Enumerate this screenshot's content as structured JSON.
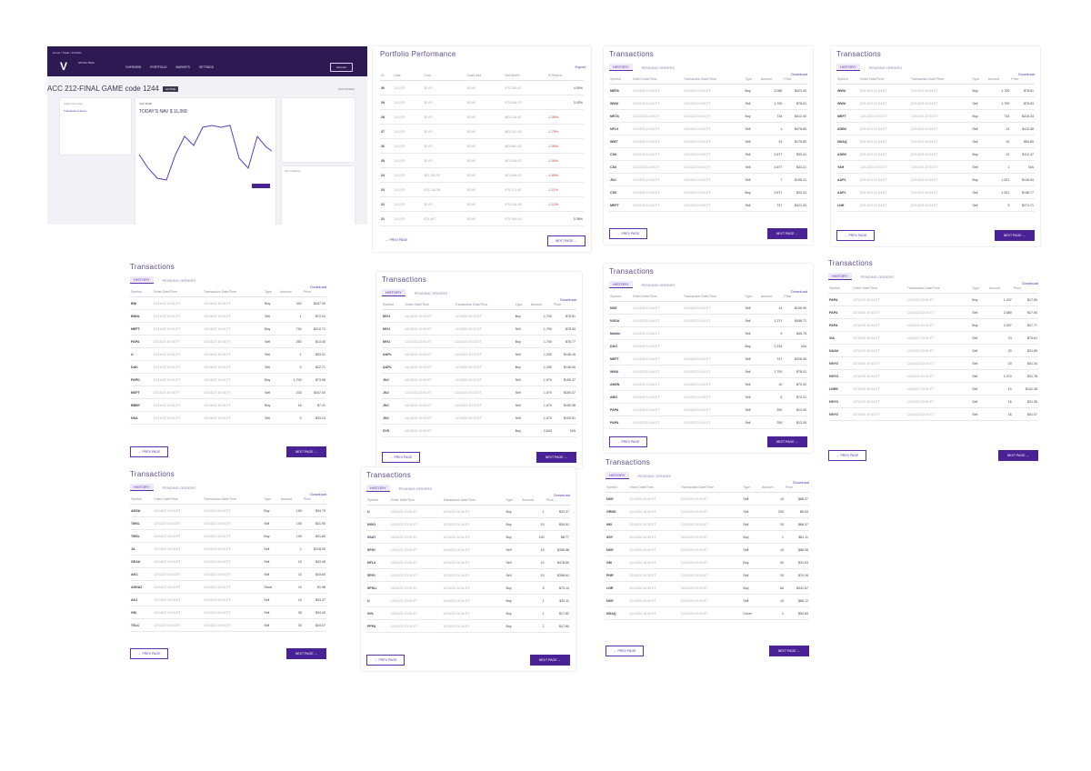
{
  "dashboard": {
    "breadcrumb": "Home / Trade / Portfolio",
    "logo_text": "STOCK TRAK",
    "nav": [
      "OVERVIEW",
      "PORTFOLIO",
      "MARKETS",
      "SETTINGS"
    ],
    "account_button": "Account",
    "game_title": "ACC 212-FINAL GAME code 1244",
    "badge": "ACTIVE",
    "right_link": "View Portfolio",
    "box1_title": "Class Overview",
    "box1_link": "Transaction History",
    "profit_title": "Your Profit",
    "profit_value": "TODAY'S NAV $ 11,068",
    "overview_title": "Top Holdings"
  },
  "performance": {
    "title": "Portfolio Performance",
    "link": "Export",
    "headers": [
      "ID",
      "Date",
      "Cost",
      "Cash Add",
      "Net Worth",
      "% Return"
    ],
    "rows": [
      [
        "30",
        "12/1/23",
        "$0.00",
        "$0.00",
        "$76,356.82",
        "4.05%"
      ],
      [
        "29",
        "12/1/23",
        "$0.00",
        "$0.00",
        "$75,538.70",
        "3.42%"
      ],
      [
        "28",
        "12/1/23",
        "$0.00",
        "$0.00",
        "$63,218.80",
        "-1.08%"
      ],
      [
        "27",
        "12/1/23",
        "$0.00",
        "$0.00",
        "$63,100.38",
        "-1.75%"
      ],
      [
        "26",
        "12/1/23",
        "$0.00",
        "$0.00",
        "$63,880.48",
        "-1.58%"
      ],
      [
        "25",
        "12/1/23",
        "$0.00",
        "$0.00",
        "$61,538.53",
        "-1.56%"
      ],
      [
        "24",
        "12/1/23",
        "$61,280.00",
        "$0.00",
        "$61,558.43",
        "-1.68%"
      ],
      [
        "23",
        "12/1/23",
        "$76,218.58",
        "$0.00",
        "$76,371.60",
        "-1.11%"
      ],
      [
        "22",
        "12/1/23",
        "$0.00",
        "$0.00",
        "$76,318.38",
        "-1.12%"
      ],
      [
        "21",
        "12/1/23",
        "$74,467",
        "$0.00",
        "$75,189.44",
        "0.38%"
      ]
    ],
    "prev": "← PREV PAGE",
    "next": "NEXT PAGE →"
  },
  "common": {
    "title": "Transactions",
    "tab_history": "HISTORY",
    "tab_pending": "PENDING ORDERS",
    "download": "Download",
    "prev": "← PREV PAGE",
    "next": "NEXT PAGE →",
    "headers": [
      "Symbol",
      "Order Date/Time",
      "Transaction Date/Time",
      "Type",
      "Amount",
      "Price"
    ]
  },
  "tx": [
    {
      "rows": [
        [
          "MEFA",
          "12/14/23 10:34 ET",
          "12/14/23 10:34 ET",
          "Buy",
          "3,066",
          "$423.40"
        ],
        [
          "WWU",
          "12/14/23 10:34 ET",
          "12/14/23 10:34 ET",
          "Sell",
          "1,700",
          "$78.01"
        ],
        [
          "META",
          "12/14/23 10:34 ET",
          "12/14/23 10:34 ET",
          "Buy",
          "734",
          "$312.40"
        ],
        [
          "NFLX",
          "12/14/23 10:34 ET",
          "12/14/23 10:34 ET",
          "Sell",
          "1",
          "$478.60"
        ],
        [
          "WMT",
          "12/14/23 10:34 ET",
          "12/14/23 10:34 ET",
          "Sell",
          "24",
          "$179.80"
        ],
        [
          "CSX",
          "12/14/23 10:34 ET",
          "12/14/23 10:34 ET",
          "Sell",
          "2,677",
          "$33.41"
        ],
        [
          "CSX",
          "12/14/23 10:34 ET",
          "12/14/23 10:34 ET",
          "Sell",
          "2,677",
          "$33.21"
        ],
        [
          "JNJ",
          "12/14/23 10:34 ET",
          "12/14/23 10:34 ET",
          "Sell",
          "7",
          "$156.21"
        ],
        [
          "CSX",
          "12/14/23 10:34 ET",
          "12/14/23 10:34 ET",
          "Buy",
          "2,677",
          "$33.34"
        ],
        [
          "MEFT",
          "12/14/23 10:34 ET",
          "12/14/23 10:34 ET",
          "Sell",
          "737",
          "$321.00"
        ]
      ]
    },
    {
      "rows": [
        [
          "WWU",
          "12/14/23 10:34 ET",
          "12/14/23 10:34 ET",
          "Buy",
          "1,700",
          "$78.61"
        ],
        [
          "WWU",
          "12/14/23 10:34 ET",
          "12/14/23 10:34 ET",
          "Sell",
          "1,700",
          "$78.53"
        ],
        [
          "MEFT",
          "12/14/23 10:34 ET",
          "12/14/23 10:34 ET",
          "Buy",
          "734",
          "$316.34"
        ],
        [
          "ADBV",
          "12/14/23 10:34 ET",
          "12/14/23 10:34 ET",
          "Sell",
          "13",
          "$112.48"
        ],
        [
          "NDAQ",
          "12/14/23 10:34 ET",
          "12/14/23 10:34 ET",
          "Sell",
          "10",
          "$54.89"
        ],
        [
          "ADBV",
          "12/14/23 10:34 ET",
          "12/14/23 10:34 ET",
          "Buy",
          "13",
          "$112.47"
        ],
        [
          "YAH",
          "12/14/23 10:34 ET",
          "12/14/23 10:34 ET",
          "Sell",
          "1",
          "N/A"
        ],
        [
          "AAPL",
          "12/14/23 10:34 ET",
          "12/14/23 10:34 ET",
          "Buy",
          "1,321",
          "$146.54"
        ],
        [
          "AAPL",
          "12/14/23 10:34 ET",
          "12/14/23 10:34 ET",
          "Sell",
          "1,321",
          "$146.77"
        ],
        [
          "LNH",
          "12/14/23 10:34 ET",
          "12/14/23 10:34 ET",
          "Sell",
          "5",
          "$274.71"
        ]
      ]
    },
    {
      "rows": [
        [
          "BNI",
          "12/14/23 10:34 ET",
          "12/14/23 10:34 ET",
          "Buy",
          "343",
          "$347.30"
        ],
        [
          "BNNL",
          "12/14/23 10:34 ET",
          "12/14/23 10:34 ET",
          "Sell",
          "1",
          "$72.01"
        ],
        [
          "MEFT",
          "12/14/23 10:34 ET",
          "12/14/23 10:34 ET",
          "Buy",
          "734",
          "$310.71"
        ],
        [
          "PAPA",
          "12/14/23 10:34 ET",
          "12/14/23 10:34 ET",
          "Sell",
          "250",
          "$13.40"
        ],
        [
          "U",
          "12/14/23 10:34 ET",
          "12/14/23 10:34 ET",
          "Sell",
          "1",
          "$33.31"
        ],
        [
          "DAK",
          "12/14/23 10:34 ET",
          "12/14/23 10:34 ET",
          "Sell",
          "5",
          "$22.71"
        ],
        [
          "PAPD",
          "12/14/23 10:34 ET",
          "12/14/23 10:34 ET",
          "Buy",
          "1,700",
          "$73.96"
        ],
        [
          "MSFT",
          "12/14/23 10:34 ET",
          "12/14/23 10:34 ET",
          "Sell",
          "234",
          "$347.04"
        ],
        [
          "BBBY",
          "12/14/23 10:34 ET",
          "12/14/23 10:34 ET",
          "Buy",
          "16",
          "$7.41"
        ],
        [
          "NSA",
          "12/14/23 10:34 ET",
          "12/14/23 10:34 ET",
          "Sell",
          "5",
          "$33.24"
        ]
      ]
    },
    {
      "rows": [
        [
          "MVU",
          "12/14/23 10:34 ET",
          "12/14/23 10:34 ET",
          "Buy",
          "1,700",
          "$78.51"
        ],
        [
          "MVU",
          "12/14/23 10:34 ET",
          "12/14/23 10:34 ET",
          "Sell",
          "1,700",
          "$78.50"
        ],
        [
          "MVU",
          "12/14/23 10:34 ET",
          "12/14/23 10:34 ET",
          "Buy",
          "1,700",
          "$78.77"
        ],
        [
          "AAPL",
          "12/14/23 10:34 ET",
          "12/14/23 10:34 ET",
          "Sell",
          "1,330",
          "$146.16"
        ],
        [
          "AAPL",
          "12/14/23 10:34 ET",
          "12/14/23 10:34 ET",
          "Buy",
          "1,330",
          "$146.50"
        ],
        [
          "JNJ",
          "12/14/23 10:34 ET",
          "12/14/23 10:34 ET",
          "Sell",
          "1,070",
          "$150.37"
        ],
        [
          "JNJ",
          "12/14/23 10:34 ET",
          "12/14/23 10:34 ET",
          "Sell",
          "1,070",
          "$150.37"
        ],
        [
          "JNJ",
          "12/14/23 10:34 ET",
          "12/14/23 10:34 ET",
          "Sell",
          "1,070",
          "$150.38"
        ],
        [
          "JNJ",
          "12/14/23 10:34 ET",
          "12/14/23 10:34 ET",
          "Sell",
          "1,070",
          "$150.51"
        ],
        [
          "SYK",
          "12/14/23 10:34 ET",
          "",
          "Buy",
          "2,643",
          "N/A"
        ]
      ]
    },
    {
      "rows": [
        [
          "NKE",
          "12/14/23 10:34 ET",
          "12/14/23 10:34 ET",
          "Sell",
          "14",
          "$106.90"
        ],
        [
          "NVDA",
          "12/14/23 10:34 ET",
          "12/14/23 10:34 ET",
          "Sell",
          "1,371",
          "$458.71"
        ],
        [
          "Mobile",
          "12/14/23 10:34 ET",
          "",
          "Sell",
          "9",
          "$45.75"
        ],
        [
          "DAO",
          "12/14/23 10:34 ET",
          "",
          "Buy",
          "2,334",
          "N/A"
        ],
        [
          "MEFT",
          "12/14/23 10:34 ET",
          "12/14/23 10:34 ET",
          "Sell",
          "747",
          "$326.08"
        ],
        [
          "WWU",
          "12/14/23 10:34 ET",
          "12/14/23 10:34 ET",
          "Sell",
          "1,700",
          "$78.01"
        ],
        [
          "AMZN",
          "12/14/23 10:34 ET",
          "12/14/23 10:34 ET",
          "Sell",
          "10",
          "$70.32"
        ],
        [
          "ABG",
          "12/14/23 10:34 ET",
          "12/14/23 10:34 ET",
          "Sell",
          "5",
          "$70.21"
        ],
        [
          "PAPA",
          "12/14/23 10:34 ET",
          "12/14/23 10:34 ET",
          "Sell",
          "250",
          "$13.40"
        ],
        [
          "PAPA",
          "12/14/23 10:34 ET",
          "12/14/23 10:34 ET",
          "Sell",
          "250",
          "$13.30"
        ]
      ]
    },
    {
      "rows": [
        [
          "PAPA",
          "12/14/23 10:34 ET",
          "12/14/23 10:34 ET",
          "Buy",
          "1,447",
          "$17.80"
        ],
        [
          "PAPA",
          "12/14/23 10:34 ET",
          "12/14/23 10:34 ET",
          "Sell",
          "2,680",
          "$17.54"
        ],
        [
          "PAPA",
          "12/14/23 10:34 ET",
          "12/14/23 10:34 ET",
          "Buy",
          "2,307",
          "$17.77"
        ],
        [
          "VIA",
          "12/14/23 10:34 ET",
          "12/14/23 10:34 ET",
          "Sell",
          "24",
          "$74.61"
        ],
        [
          "NAAU",
          "12/14/23 10:34 ET",
          "12/14/23 10:34 ET",
          "Sell",
          "20",
          "$31.89"
        ],
        [
          "NSYO",
          "12/14/23 10:34 ET",
          "12/14/23 10:34 ET",
          "Sell",
          "20",
          "$31.34"
        ],
        [
          "NSYO",
          "12/14/23 10:34 ET",
          "12/14/23 10:34 ET",
          "Sell",
          "1,070",
          "$31.78"
        ],
        [
          "LNHK",
          "12/14/23 10:34 ET",
          "12/14/23 10:34 ET",
          "Sell",
          "10",
          "$141.36"
        ],
        [
          "NSYO",
          "12/14/23 10:34 ET",
          "12/14/23 10:34 ET",
          "Sell",
          "16",
          "$31.26"
        ],
        [
          "NSYO",
          "12/14/23 10:34 ET",
          "12/14/23 10:34 ET",
          "Sell",
          "16",
          "$31.07"
        ]
      ]
    },
    {
      "rows": [
        [
          "AMVA",
          "12/14/23 10:34 ET",
          "12/14/23 10:34 ET",
          "Buy",
          "100",
          "$34.79"
        ],
        [
          "TMSL",
          "12/14/23 10:34 ET",
          "12/14/23 10:34 ET",
          "Sell",
          "100",
          "$31.90"
        ],
        [
          "TMSL",
          "12/14/23 10:34 ET",
          "12/14/23 10:34 ET",
          "Buy",
          "100",
          "$31.80"
        ],
        [
          "JA",
          "12/14/23 10:34 ET",
          "12/14/23 10:34 ET",
          "Sell",
          "1",
          "$128.00"
        ],
        [
          "GEAU",
          "12/14/23 10:34 ET",
          "12/14/23 10:34 ET",
          "Sell",
          "10",
          "$43.46"
        ],
        [
          "AKC",
          "12/14/23 10:34 ET",
          "12/14/23 10:34 ET",
          "Sell",
          "10",
          "$43.60"
        ],
        [
          "ASHAZ",
          "12/14/23 10:34 ET",
          "12/14/23 10:34 ET",
          "Short",
          "10",
          "$1.98"
        ],
        [
          "AKJ",
          "12/14/23 10:34 ET",
          "12/14/23 10:34 ET",
          "Sell",
          "10",
          "$43.47"
        ],
        [
          "GM",
          "12/14/23 10:34 ET",
          "12/14/23 10:34 ET",
          "Sell",
          "30",
          "$34.40"
        ],
        [
          "TSLC",
          "12/14/23 10:34 ET",
          "12/14/23 10:34 ET",
          "Sell",
          "30",
          "$34.07"
        ]
      ]
    },
    {
      "rows": [
        [
          "U",
          "12/14/23 10:34 ET",
          "12/14/23 10:34 ET",
          "Buy",
          "1",
          "$33.37"
        ],
        [
          "NIGO",
          "12/14/23 10:34 ET",
          "12/14/23 10:34 ET",
          "Buy",
          "10",
          "$30.51"
        ],
        [
          "SSAT",
          "12/14/23 10:34 ET",
          "12/14/23 10:34 ET",
          "Buy",
          "100",
          "$8.77"
        ],
        [
          "SPGI",
          "12/14/23 10:34 ET",
          "12/14/23 10:34 ET",
          "Sell",
          "10",
          "$356.88"
        ],
        [
          "NFLX",
          "12/14/23 10:34 ET",
          "12/14/23 10:34 ET",
          "Sell",
          "10",
          "$478.60"
        ],
        [
          "SPGI",
          "12/14/23 10:34 ET",
          "12/14/23 10:34 ET",
          "Sell",
          "10",
          "$356.61"
        ],
        [
          "SPSLI",
          "12/14/23 10:34 ET",
          "12/14/23 10:34 ET",
          "Buy",
          "5",
          "$73.14"
        ],
        [
          "U",
          "12/14/23 10:34 ET",
          "12/14/23 10:34 ET",
          "Buy",
          "1",
          "$33.11"
        ],
        [
          "NVL",
          "12/14/23 10:34 ET",
          "12/14/23 10:34 ET",
          "Buy",
          "1",
          "$17.82"
        ],
        [
          "PPPA",
          "12/14/23 10:34 ET",
          "12/14/23 10:34 ET",
          "Buy",
          "1",
          "$17.80"
        ]
      ]
    },
    {
      "rows": [
        [
          "NKE",
          "12/14/23 10:34 ET",
          "12/14/23 10:34 ET",
          "Sell",
          "10",
          "$88.37"
        ],
        [
          "GRND",
          "12/14/23 10:34 ET",
          "12/14/23 10:34 ET",
          "Sell",
          "200",
          "$6.04"
        ],
        [
          "NKI",
          "12/14/23 10:34 ET",
          "12/14/23 10:34 ET",
          "Sell",
          "10",
          "$88.37"
        ],
        [
          "SSY",
          "12/14/23 10:34 ET",
          "12/14/23 10:34 ET",
          "Buy",
          "1",
          "$81.11"
        ],
        [
          "NKE",
          "12/14/23 10:34 ET",
          "12/14/23 10:34 ET",
          "Sell",
          "10",
          "$88.06"
        ],
        [
          "GM",
          "12/14/23 10:34 ET",
          "12/14/23 10:34 ET",
          "Buy",
          "30",
          "$31.63"
        ],
        [
          "PNR",
          "12/14/23 10:34 ET",
          "12/14/23 10:34 ET",
          "Sell",
          "10",
          "$70.16"
        ],
        [
          "LNR",
          "12/14/23 10:34 ET",
          "12/14/23 10:34 ET",
          "Buy",
          "5A",
          "$341.67"
        ],
        [
          "NKE",
          "12/14/23 10:34 ET",
          "12/14/23 10:34 ET",
          "Sell",
          "10",
          "$88.12"
        ],
        [
          "NDAQ",
          "12/14/23 10:34 ET",
          "12/14/23 10:34 ET",
          "Cover",
          "1",
          "$54.83"
        ]
      ]
    }
  ]
}
